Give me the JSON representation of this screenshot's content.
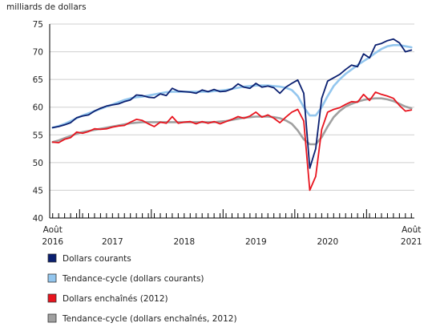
{
  "chart_data": {
    "type": "line",
    "unit_label": "milliards de dollars",
    "ylim": [
      40,
      75
    ],
    "yticks": [
      40,
      45,
      50,
      55,
      60,
      65,
      70,
      75
    ],
    "x_start": "Août 2016",
    "x_end": "Août 2021",
    "n_points": 61,
    "x_labels": [
      {
        "month": "Août",
        "year": "2016",
        "index": 0
      },
      {
        "year": "2017",
        "index": 10
      },
      {
        "year": "2018",
        "index": 22
      },
      {
        "year": "2019",
        "index": 34
      },
      {
        "year": "2020",
        "index": 46
      },
      {
        "month": "Août",
        "year": "2021",
        "index": 60
      }
    ],
    "year_boundaries": [
      4.5,
      16.5,
      28.5,
      40.5,
      52.5
    ],
    "grid": "horizontal",
    "legend_placement": "bottom-left",
    "series": [
      {
        "name": "Dollars courants",
        "color": "#0a1f70",
        "style": "solid",
        "values": [
          56.3,
          56.5,
          56.8,
          57.2,
          58.1,
          58.4,
          58.6,
          59.3,
          59.8,
          60.2,
          60.4,
          60.6,
          61.0,
          61.3,
          62.2,
          62.1,
          61.8,
          61.7,
          62.4,
          62.1,
          63.4,
          62.9,
          62.8,
          62.7,
          62.5,
          63.1,
          62.8,
          63.2,
          62.8,
          62.9,
          63.3,
          64.2,
          63.6,
          63.4,
          64.3,
          63.6,
          63.8,
          63.5,
          62.5,
          63.6,
          64.3,
          64.9,
          62.5,
          49.0,
          52.5,
          61.6,
          64.7,
          65.3,
          65.9,
          66.8,
          67.6,
          67.3,
          69.6,
          68.9,
          71.2,
          71.5,
          72.0,
          72.3,
          71.6,
          70.0,
          70.3
        ]
      },
      {
        "name": "Tendance-cycle (dollars courants)",
        "color": "#93c6ee",
        "style": "solid",
        "values": [
          56.3,
          56.6,
          57.0,
          57.5,
          58.0,
          58.5,
          58.9,
          59.3,
          59.7,
          60.1,
          60.5,
          60.9,
          61.3,
          61.6,
          61.8,
          61.9,
          62.1,
          62.3,
          62.5,
          62.7,
          62.8,
          62.8,
          62.8,
          62.8,
          62.8,
          62.8,
          62.8,
          62.9,
          63.0,
          63.1,
          63.3,
          63.5,
          63.7,
          63.8,
          63.9,
          63.9,
          63.9,
          63.8,
          63.7,
          63.5,
          63.1,
          62.0,
          60.0,
          58.5,
          58.5,
          60.0,
          62.0,
          63.8,
          65.0,
          66.0,
          66.8,
          67.6,
          68.3,
          69.0,
          69.8,
          70.5,
          71.0,
          71.2,
          71.2,
          71.0,
          70.8
        ]
      },
      {
        "name": "Dollars enchaînés (2012)",
        "color": "#e8141e",
        "style": "solid",
        "values": [
          53.7,
          53.6,
          54.2,
          54.5,
          55.5,
          55.3,
          55.6,
          56.1,
          56.0,
          56.1,
          56.4,
          56.6,
          56.7,
          57.3,
          57.8,
          57.6,
          57.0,
          56.5,
          57.3,
          57.1,
          58.3,
          57.1,
          57.3,
          57.4,
          57.0,
          57.4,
          57.1,
          57.4,
          57.0,
          57.4,
          57.8,
          58.3,
          58.0,
          58.4,
          59.1,
          58.2,
          58.6,
          58.0,
          57.2,
          58.2,
          59.1,
          59.6,
          57.5,
          45.0,
          47.5,
          56.0,
          59.1,
          59.6,
          59.9,
          60.5,
          61.0,
          60.9,
          62.3,
          61.2,
          62.7,
          62.3,
          62.0,
          61.6,
          60.3,
          59.3,
          59.5
        ]
      },
      {
        "name": "Tendance-cycle (dollars enchaînés, 2012)",
        "color": "#a0a0a0",
        "style": "solid",
        "values": [
          53.7,
          54.0,
          54.4,
          54.8,
          55.2,
          55.5,
          55.7,
          55.9,
          56.1,
          56.3,
          56.5,
          56.7,
          56.9,
          57.1,
          57.2,
          57.3,
          57.3,
          57.3,
          57.3,
          57.3,
          57.3,
          57.3,
          57.3,
          57.3,
          57.3,
          57.3,
          57.3,
          57.3,
          57.4,
          57.5,
          57.7,
          57.9,
          58.1,
          58.2,
          58.3,
          58.3,
          58.3,
          58.2,
          58.0,
          57.6,
          57.0,
          55.8,
          54.2,
          53.3,
          53.3,
          54.6,
          56.5,
          58.2,
          59.3,
          60.1,
          60.6,
          61.0,
          61.3,
          61.5,
          61.6,
          61.6,
          61.4,
          61.1,
          60.6,
          60.1,
          59.8
        ]
      }
    ]
  },
  "legend": [
    {
      "label": "Dollars courants",
      "color": "#0a1f70"
    },
    {
      "label": "Tendance-cycle (dollars courants)",
      "color": "#93c6ee"
    },
    {
      "label": "Dollars enchaînés (2012)",
      "color": "#e8141e"
    },
    {
      "label": "Tendance-cycle (dollars enchaînés, 2012)",
      "color": "#a0a0a0"
    }
  ]
}
